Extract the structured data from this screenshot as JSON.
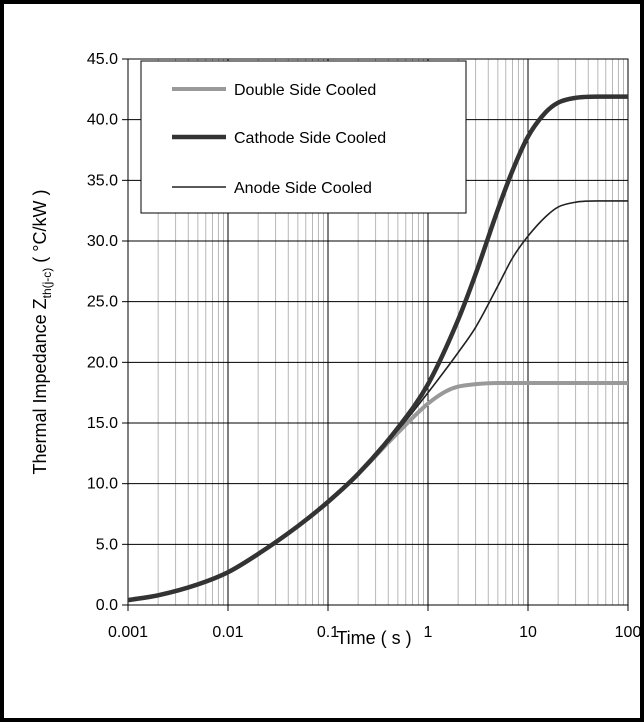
{
  "chart_data": {
    "type": "line",
    "title": "",
    "xlabel": "Time ( s )",
    "ylabel_main": "Thermal Impedance  Z",
    "ylabel_sub": "th(j-c)",
    "ylabel_unit": " ( °C/kW )",
    "x_scale": "log",
    "xlim": [
      0.001,
      100
    ],
    "ylim": [
      0,
      45
    ],
    "x_ticks": [
      "0.001",
      "0.01",
      "0.1",
      "1",
      "10",
      "100"
    ],
    "y_ticks": [
      "0.0",
      "5.0",
      "10.0",
      "15.0",
      "20.0",
      "25.0",
      "30.0",
      "35.0",
      "40.0",
      "45.0"
    ],
    "grid": true,
    "legend_position": "top-left",
    "series": [
      {
        "name": "Double Side Cooled",
        "color": "#999999",
        "style": "thick",
        "x": [
          0.001,
          0.002,
          0.005,
          0.01,
          0.02,
          0.05,
          0.1,
          0.2,
          0.5,
          1,
          1.5,
          2,
          3,
          5,
          10,
          20,
          50,
          100
        ],
        "y": [
          0.4,
          0.8,
          1.7,
          2.7,
          4.2,
          6.5,
          8.5,
          10.8,
          14.2,
          16.6,
          17.6,
          18.0,
          18.2,
          18.3,
          18.3,
          18.3,
          18.3,
          18.3
        ]
      },
      {
        "name": "Cathode Side Cooled",
        "color": "#333333",
        "style": "bold",
        "x": [
          0.001,
          0.002,
          0.005,
          0.01,
          0.02,
          0.05,
          0.1,
          0.2,
          0.5,
          1,
          2,
          3,
          5,
          7,
          10,
          15,
          20,
          30,
          50,
          100
        ],
        "y": [
          0.4,
          0.8,
          1.7,
          2.7,
          4.2,
          6.5,
          8.5,
          10.8,
          14.6,
          18.2,
          23.5,
          27.3,
          32.6,
          35.8,
          38.6,
          40.6,
          41.4,
          41.8,
          41.9,
          41.9
        ]
      },
      {
        "name": "Anode Side Cooled",
        "color": "#222222",
        "style": "thin",
        "x": [
          0.001,
          0.002,
          0.005,
          0.01,
          0.02,
          0.05,
          0.1,
          0.2,
          0.5,
          1,
          2,
          3,
          5,
          7,
          10,
          15,
          20,
          30,
          50,
          100
        ],
        "y": [
          0.4,
          0.8,
          1.7,
          2.7,
          4.2,
          6.5,
          8.5,
          10.8,
          14.4,
          17.5,
          20.8,
          22.9,
          26.3,
          28.6,
          30.4,
          32.0,
          32.8,
          33.2,
          33.3,
          33.3
        ]
      }
    ]
  }
}
